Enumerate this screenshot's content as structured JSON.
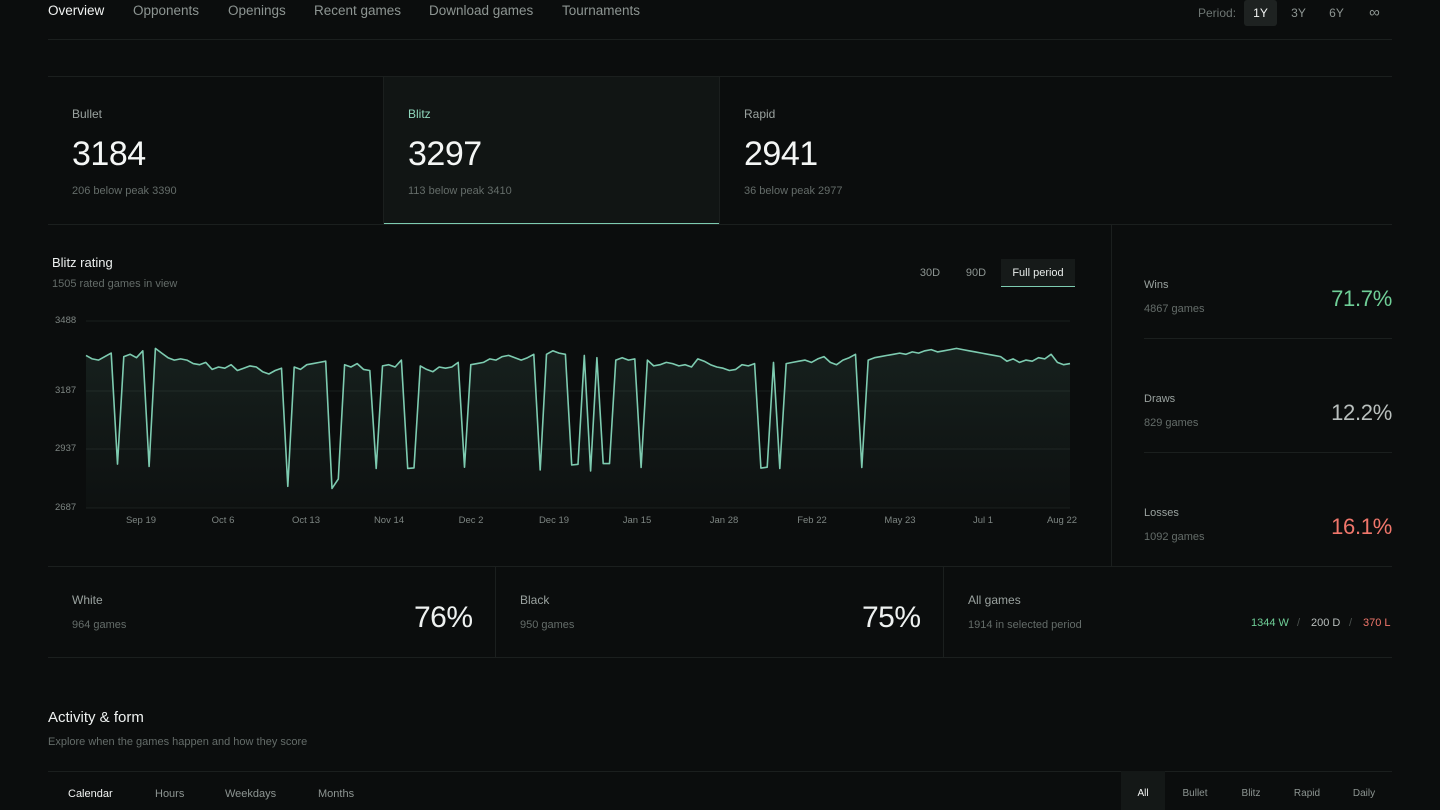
{
  "nav": {
    "tabs": [
      {
        "label": "Overview",
        "active": true
      },
      {
        "label": "Opponents"
      },
      {
        "label": "Openings"
      },
      {
        "label": "Recent games"
      },
      {
        "label": "Download games"
      },
      {
        "label": "Tournaments"
      }
    ],
    "period_label": "Period:",
    "periods": [
      "1Y",
      "3Y",
      "6Y",
      "∞"
    ],
    "active_period": "1Y"
  },
  "rating_cards": [
    {
      "name": "Bullet",
      "rating": "3184",
      "sub": "206 below peak 3390"
    },
    {
      "name": "Blitz",
      "rating": "3297",
      "sub": "113 below peak 3410",
      "active": true
    },
    {
      "name": "Rapid",
      "rating": "2941",
      "sub": "36 below peak 2977"
    }
  ],
  "chart": {
    "title": "Blitz rating",
    "subtitle": "1505 rated games in view",
    "ranges": [
      "30D",
      "90D",
      "Full period"
    ],
    "active_range": "Full period",
    "line_color": "#7dcbb0"
  },
  "chart_data": {
    "type": "area",
    "title": "Blitz rating",
    "yticks": [
      3488,
      3187,
      2937,
      2687
    ],
    "ylim": [
      2687,
      3488
    ],
    "xticks": [
      "Sep 19",
      "Oct 6",
      "Oct 13",
      "Nov 14",
      "Dec 2",
      "Dec 19",
      "Jan 15",
      "Jan 28",
      "Feb 22",
      "May 23",
      "Jul 1",
      "Aug 22"
    ],
    "values": [
      3340,
      3325,
      3320,
      3335,
      3350,
      2873,
      3335,
      3345,
      3330,
      3360,
      2863,
      3370,
      3350,
      3330,
      3320,
      3325,
      3320,
      3305,
      3300,
      3310,
      3280,
      3290,
      3285,
      3300,
      3275,
      3285,
      3295,
      3290,
      3270,
      3260,
      3275,
      3285,
      2779,
      3290,
      3280,
      3300,
      3305,
      3310,
      3315,
      2770,
      2810,
      3300,
      3290,
      3305,
      3280,
      3275,
      2855,
      3295,
      3300,
      3290,
      3320,
      2855,
      2857,
      3295,
      3280,
      3270,
      3290,
      3285,
      3290,
      3310,
      2860,
      3300,
      3305,
      3310,
      3325,
      3320,
      3335,
      3340,
      3330,
      3320,
      3330,
      3345,
      2848,
      3345,
      3360,
      3350,
      3345,
      2869,
      2872,
      3340,
      2844,
      3330,
      2875,
      2875,
      3320,
      3330,
      3320,
      3325,
      2859,
      3320,
      3295,
      3300,
      3310,
      3305,
      3295,
      3300,
      3290,
      3325,
      3315,
      3300,
      3290,
      3285,
      3275,
      3280,
      3300,
      3295,
      3305,
      2856,
      2860,
      3310,
      2855,
      3305,
      3310,
      3315,
      3320,
      3310,
      3325,
      3335,
      3310,
      3300,
      3320,
      3330,
      3345,
      2859,
      3320,
      3330,
      3335,
      3340,
      3345,
      3350,
      3345,
      3355,
      3350,
      3360,
      3365,
      3355,
      3360,
      3365,
      3370,
      3365,
      3360,
      3355,
      3350,
      3345,
      3340,
      3335,
      3315,
      3325,
      3310,
      3320,
      3315,
      3330,
      3325,
      3345,
      3310,
      3300,
      3305
    ]
  },
  "stats": [
    {
      "label": "Wins",
      "games": "4867 games",
      "value": "71.7%",
      "color": "#6fcf97"
    },
    {
      "label": "Draws",
      "games": "829 games",
      "value": "12.2%",
      "color": "#b9bfbd"
    },
    {
      "label": "Losses",
      "games": "1092 games",
      "value": "16.1%",
      "color": "#f0766b"
    }
  ],
  "colors": [
    {
      "label": "White",
      "games": "964 games",
      "value": "76%"
    },
    {
      "label": "Black",
      "games": "950 games",
      "value": "75%"
    },
    {
      "label": "All games",
      "games": "1914 in selected period",
      "w": "1344 W",
      "d": "200 D",
      "l": "370 L",
      "sep": "/"
    }
  ],
  "activity": {
    "title": "Activity & form",
    "subtitle": "Explore when the games happen and how they score",
    "tabs": [
      "Calendar",
      "Hours",
      "Weekdays",
      "Months"
    ],
    "active_tab": "Calendar",
    "types": [
      "All",
      "Bullet",
      "Blitz",
      "Rapid",
      "Daily"
    ],
    "active_type": "All"
  }
}
